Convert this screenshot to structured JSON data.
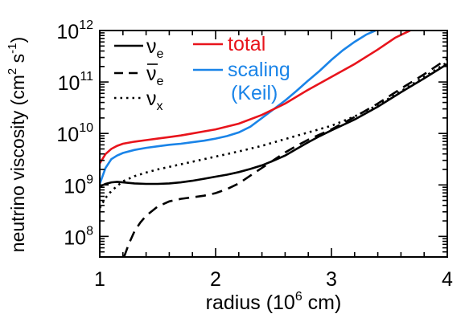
{
  "chart_data": {
    "type": "line",
    "title": "",
    "xlabel": {
      "prefix": "radius (10",
      "exp": "6",
      "suffix": " cm)"
    },
    "ylabel": {
      "text": "neutrino viscosity (cm",
      "exp1": "2",
      "mid": " s",
      "exp2": "-1",
      "close": ")"
    },
    "xlim": [
      1,
      4
    ],
    "ylim_log10": [
      7.6,
      12
    ],
    "y_scale": "log",
    "x_ticks": [
      {
        "value": 1,
        "label": "1"
      },
      {
        "value": 2,
        "label": "2"
      },
      {
        "value": 3,
        "label": "3"
      },
      {
        "value": 4,
        "label": "4"
      }
    ],
    "y_ticks": [
      {
        "exp10": 8,
        "base": "10",
        "exp": "8"
      },
      {
        "exp10": 9,
        "base": "10",
        "exp": "9"
      },
      {
        "exp10": 10,
        "base": "10",
        "exp": "10"
      },
      {
        "exp10": 11,
        "base": "10",
        "exp": "11"
      },
      {
        "exp10": 12,
        "base": "10",
        "exp": "12"
      }
    ],
    "grid": false,
    "legend": [
      {
        "series": "nu_e",
        "symbol": "ν",
        "sub": "e",
        "bar": false
      },
      {
        "series": "nu_e_bar",
        "symbol": "ν",
        "sub": "e",
        "bar": true
      },
      {
        "series": "nu_x",
        "symbol": "ν",
        "sub": "x",
        "bar": false
      },
      {
        "series": "total",
        "text": "total"
      },
      {
        "series": "scaling",
        "text": "scaling"
      },
      {
        "series": "scaling",
        "text": "(Keil)"
      }
    ],
    "series": [
      {
        "key": "nu_e",
        "color": "#000000",
        "dash": "solid",
        "x": [
          1.0,
          1.05,
          1.1,
          1.15,
          1.2,
          1.3,
          1.4,
          1.5,
          1.6,
          1.7,
          1.8,
          1.9,
          2.0,
          2.1,
          2.2,
          2.3,
          2.4,
          2.5,
          2.6,
          2.7,
          2.8,
          2.9,
          3.0,
          3.2,
          3.4,
          3.6,
          3.8,
          4.0
        ],
        "log10y": [
          8.97,
          9.02,
          9.05,
          9.06,
          9.05,
          9.03,
          9.02,
          9.02,
          9.03,
          9.05,
          9.08,
          9.12,
          9.16,
          9.2,
          9.25,
          9.31,
          9.38,
          9.47,
          9.57,
          9.7,
          9.83,
          9.95,
          10.06,
          10.27,
          10.52,
          10.8,
          11.07,
          11.35
        ]
      },
      {
        "key": "nu_e_bar",
        "color": "#000000",
        "dash": "dashed",
        "x": [
          1.21,
          1.25,
          1.3,
          1.35,
          1.4,
          1.5,
          1.6,
          1.7,
          1.8,
          1.9,
          2.0,
          2.1,
          2.2,
          2.3,
          2.4,
          2.5,
          2.6,
          2.7,
          2.8,
          2.9,
          3.0,
          3.2,
          3.4,
          3.6,
          3.8,
          4.0
        ],
        "log10y": [
          7.6,
          7.85,
          8.1,
          8.27,
          8.4,
          8.58,
          8.68,
          8.73,
          8.76,
          8.79,
          8.84,
          8.92,
          9.03,
          9.18,
          9.33,
          9.48,
          9.63,
          9.76,
          9.88,
          9.98,
          10.08,
          10.32,
          10.58,
          10.87,
          11.15,
          11.45
        ]
      },
      {
        "key": "nu_x",
        "color": "#000000",
        "dash": "dotted",
        "x": [
          1.0,
          1.05,
          1.1,
          1.15,
          1.2,
          1.3,
          1.4,
          1.5,
          1.6,
          1.7,
          1.8,
          1.9,
          2.0,
          2.2,
          2.4,
          2.6,
          2.8,
          3.0,
          3.2,
          3.4,
          3.6,
          3.8,
          4.0
        ],
        "log10y": [
          8.55,
          8.75,
          8.88,
          8.98,
          9.07,
          9.17,
          9.24,
          9.3,
          9.35,
          9.4,
          9.45,
          9.5,
          9.55,
          9.65,
          9.76,
          9.89,
          10.02,
          10.15,
          10.33,
          10.55,
          10.82,
          11.1,
          11.38
        ]
      },
      {
        "key": "total",
        "color": "#e8141c",
        "dash": "solid",
        "x": [
          1.0,
          1.05,
          1.1,
          1.15,
          1.2,
          1.3,
          1.4,
          1.5,
          1.6,
          1.7,
          1.8,
          1.9,
          2.0,
          2.2,
          2.4,
          2.6,
          2.8,
          3.0,
          3.2,
          3.4,
          3.55,
          3.68
        ],
        "log10y": [
          9.42,
          9.6,
          9.7,
          9.76,
          9.8,
          9.84,
          9.87,
          9.9,
          9.93,
          9.96,
          10.0,
          10.04,
          10.08,
          10.19,
          10.36,
          10.58,
          10.85,
          11.1,
          11.35,
          11.63,
          11.86,
          12.0
        ]
      },
      {
        "key": "scaling",
        "color": "#1a84e8",
        "dash": "solid",
        "x": [
          1.0,
          1.05,
          1.1,
          1.15,
          1.2,
          1.3,
          1.4,
          1.5,
          1.6,
          1.7,
          1.8,
          1.9,
          2.0,
          2.1,
          2.2,
          2.3,
          2.4,
          2.5,
          2.6,
          2.7,
          2.8,
          2.9,
          3.0,
          3.1,
          3.2,
          3.3,
          3.38
        ],
        "log10y": [
          9.02,
          9.33,
          9.5,
          9.57,
          9.62,
          9.68,
          9.72,
          9.75,
          9.78,
          9.8,
          9.83,
          9.86,
          9.9,
          9.95,
          10.02,
          10.13,
          10.3,
          10.47,
          10.64,
          10.83,
          11.03,
          11.22,
          11.43,
          11.62,
          11.78,
          11.92,
          12.0
        ]
      }
    ]
  }
}
